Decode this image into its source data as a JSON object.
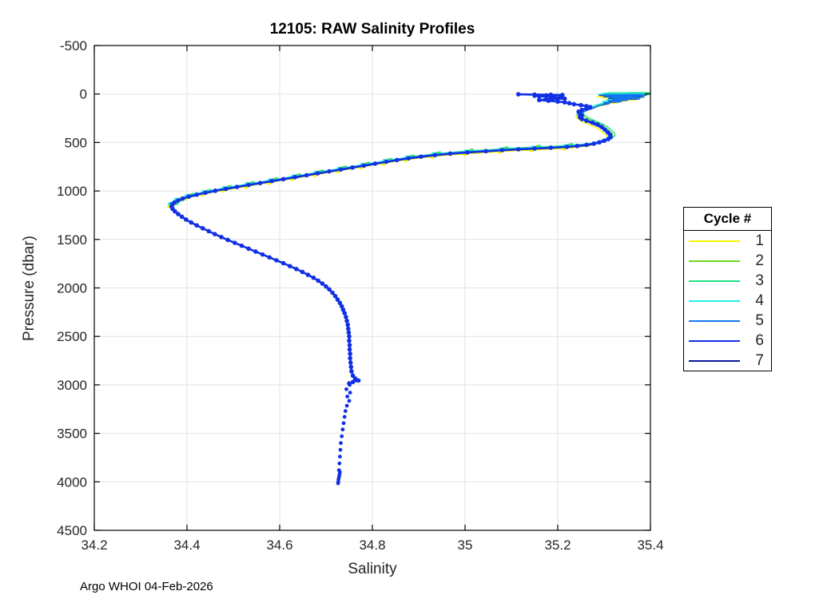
{
  "chart_data": {
    "type": "line",
    "title": "12105: RAW Salinity Profiles",
    "xlabel": "Salinity",
    "ylabel": "Pressure (dbar)",
    "footer": "Argo WHOI 04-Feb-2026",
    "xlim": [
      34.2,
      35.4
    ],
    "ylim": [
      -500,
      4500
    ],
    "y_axis_reversed": true,
    "grid": true,
    "grid_color": "#e2e2e2",
    "axis_color": "#000000",
    "tick_label_color": "#262626",
    "xticks": {
      "values": [
        34.2,
        34.4,
        34.6,
        34.8,
        35.0,
        35.2,
        35.4
      ],
      "labels": [
        "34.2",
        "34.4",
        "34.6",
        "34.8",
        "35",
        "35.2",
        "35.4"
      ]
    },
    "yticks": {
      "values": [
        -500,
        0,
        500,
        1000,
        1500,
        2000,
        2500,
        3000,
        3500,
        4000,
        4500
      ],
      "labels": [
        "-500",
        "0",
        "500",
        "1000",
        "1500",
        "2000",
        "2500",
        "3000",
        "3500",
        "4000",
        "4500"
      ]
    },
    "legend": {
      "title": "Cycle #",
      "position": "right-outside",
      "entries": [
        {
          "label": "1",
          "color": "#f7f500"
        },
        {
          "label": "2",
          "color": "#70d92b"
        },
        {
          "label": "3",
          "color": "#21e383"
        },
        {
          "label": "4",
          "color": "#1ff0ee"
        },
        {
          "label": "5",
          "color": "#1577f0"
        },
        {
          "label": "6",
          "color": "#1130e6"
        },
        {
          "label": "7",
          "color": "#0a17a0"
        }
      ]
    },
    "series": [
      {
        "label": "1",
        "color": "#f7f500",
        "style": "thin",
        "dx": -0.006,
        "dy": 16,
        "diag_markers": true
      },
      {
        "label": "2",
        "color": "#70d92b",
        "style": "thin",
        "dx": 0.005,
        "dy": -12,
        "diag_markers": true
      },
      {
        "label": "3",
        "color": "#21e383",
        "style": "thin",
        "dx": 0.01,
        "dy": -17,
        "diag_markers": true
      },
      {
        "label": "4",
        "color": "#1ff0ee",
        "style": "thin",
        "dx": -0.004,
        "dy": -7,
        "diag_markers": true
      },
      {
        "label": "5",
        "color": "#1577f0",
        "style": "thin",
        "dx": 0.002,
        "dy": 2,
        "diag_markers": false
      },
      {
        "label": "6",
        "color": "#1130e6",
        "style": "main",
        "dx": 0,
        "dy": 0,
        "diag_markers": false
      },
      {
        "label": "7",
        "color": "#0a17a0",
        "style": "thin",
        "dx": 0,
        "dy": 6,
        "diag_markers": false
      }
    ],
    "profiles_note": "points are [pressure_dbar, salinity]; cycle 6 is the dominant thick marker profile, cycles 1-5 and 7 are thin overlapping lines",
    "main_profile": [
      [
        3,
        35.115
      ],
      [
        6,
        35.15
      ],
      [
        8,
        35.185
      ],
      [
        10,
        35.21
      ],
      [
        14,
        35.175
      ],
      [
        18,
        35.15
      ],
      [
        24,
        35.16
      ],
      [
        30,
        35.185
      ],
      [
        38,
        35.205
      ],
      [
        48,
        35.215
      ],
      [
        55,
        35.175
      ],
      [
        62,
        35.16
      ],
      [
        70,
        35.18
      ],
      [
        78,
        35.2
      ],
      [
        86,
        35.215
      ],
      [
        95,
        35.225
      ],
      [
        105,
        35.235
      ],
      [
        115,
        35.25
      ],
      [
        125,
        35.262
      ],
      [
        135,
        35.27
      ],
      [
        148,
        35.262
      ],
      [
        165,
        35.252
      ],
      [
        182,
        35.245
      ],
      [
        200,
        35.248
      ],
      [
        220,
        35.252
      ],
      [
        240,
        35.248
      ],
      [
        258,
        35.252
      ],
      [
        275,
        35.262
      ],
      [
        295,
        35.275
      ],
      [
        315,
        35.286
      ],
      [
        340,
        35.295
      ],
      [
        368,
        35.302
      ],
      [
        395,
        35.308
      ],
      [
        420,
        35.313
      ],
      [
        445,
        35.314
      ],
      [
        465,
        35.309
      ],
      [
        482,
        35.3
      ],
      [
        498,
        35.29
      ],
      [
        512,
        35.278
      ],
      [
        525,
        35.262
      ],
      [
        536,
        35.242
      ],
      [
        545,
        35.22
      ],
      [
        554,
        35.185
      ],
      [
        562,
        35.15
      ],
      [
        570,
        35.115
      ],
      [
        579,
        35.08
      ],
      [
        590,
        35.045
      ],
      [
        602,
        35.005
      ],
      [
        615,
        34.968
      ],
      [
        630,
        34.935
      ],
      [
        646,
        34.905
      ],
      [
        663,
        34.878
      ],
      [
        681,
        34.853
      ],
      [
        699,
        34.83
      ],
      [
        718,
        34.806
      ],
      [
        738,
        34.782
      ],
      [
        758,
        34.757
      ],
      [
        778,
        34.732
      ],
      [
        798,
        34.707
      ],
      [
        818,
        34.682
      ],
      [
        838,
        34.658
      ],
      [
        858,
        34.633
      ],
      [
        878,
        34.608
      ],
      [
        898,
        34.583
      ],
      [
        918,
        34.558
      ],
      [
        938,
        34.533
      ],
      [
        958,
        34.508
      ],
      [
        978,
        34.484
      ],
      [
        998,
        34.461
      ],
      [
        1018,
        34.44
      ],
      [
        1038,
        34.421
      ],
      [
        1058,
        34.404
      ],
      [
        1078,
        34.391
      ],
      [
        1098,
        34.381
      ],
      [
        1118,
        34.373
      ],
      [
        1140,
        34.368
      ],
      [
        1162,
        34.367
      ],
      [
        1185,
        34.369
      ],
      [
        1210,
        34.374
      ],
      [
        1238,
        34.381
      ],
      [
        1266,
        34.389
      ],
      [
        1295,
        34.398
      ],
      [
        1325,
        34.409
      ],
      [
        1355,
        34.421
      ],
      [
        1385,
        34.434
      ],
      [
        1415,
        34.447
      ],
      [
        1445,
        34.46
      ],
      [
        1475,
        34.474
      ],
      [
        1505,
        34.488
      ],
      [
        1535,
        34.503
      ],
      [
        1565,
        34.518
      ],
      [
        1595,
        34.533
      ],
      [
        1625,
        34.548
      ],
      [
        1655,
        34.563
      ],
      [
        1685,
        34.578
      ],
      [
        1715,
        34.593
      ],
      [
        1745,
        34.608
      ],
      [
        1775,
        34.622
      ],
      [
        1805,
        34.636
      ],
      [
        1835,
        34.649
      ],
      [
        1865,
        34.661
      ],
      [
        1895,
        34.673
      ],
      [
        1925,
        34.683
      ],
      [
        1955,
        34.692
      ],
      [
        1985,
        34.7
      ],
      [
        2015,
        34.707
      ],
      [
        2050,
        34.714
      ],
      [
        2085,
        34.72
      ],
      [
        2120,
        34.725
      ],
      [
        2155,
        34.73
      ],
      [
        2190,
        34.734
      ],
      [
        2225,
        34.737
      ],
      [
        2260,
        34.74
      ],
      [
        2300,
        34.743
      ],
      [
        2340,
        34.745
      ],
      [
        2380,
        34.747
      ],
      [
        2420,
        34.748
      ],
      [
        2460,
        34.749
      ],
      [
        2500,
        34.75
      ],
      [
        2545,
        34.75
      ],
      [
        2590,
        34.751
      ],
      [
        2635,
        34.751
      ],
      [
        2680,
        34.752
      ],
      [
        2725,
        34.752
      ],
      [
        2770,
        34.753
      ],
      [
        2815,
        34.754
      ],
      [
        2860,
        34.755
      ],
      [
        2905,
        34.758
      ],
      [
        2935,
        34.763
      ],
      [
        2955,
        34.77
      ],
      [
        2970,
        34.758
      ],
      [
        2985,
        34.75
      ]
    ],
    "surface_thin_profile": [
      [
        2,
        35.34
      ],
      [
        3,
        35.39
      ],
      [
        5,
        35.3
      ],
      [
        7,
        35.37
      ],
      [
        9,
        35.29
      ],
      [
        12,
        35.38
      ],
      [
        15,
        35.3
      ],
      [
        18,
        35.36
      ],
      [
        22,
        35.3
      ],
      [
        26,
        35.385
      ],
      [
        30,
        35.315
      ],
      [
        35,
        35.37
      ],
      [
        40,
        35.31
      ],
      [
        46,
        35.375
      ],
      [
        52,
        35.32
      ],
      [
        58,
        35.35
      ],
      [
        66,
        35.31
      ],
      [
        75,
        35.335
      ],
      [
        85,
        35.3
      ],
      [
        95,
        35.31
      ],
      [
        108,
        35.295
      ],
      [
        122,
        35.285
      ],
      [
        138,
        35.278
      ],
      [
        155,
        35.268
      ],
      [
        172,
        35.258
      ],
      [
        190,
        35.25
      ],
      [
        212,
        35.245
      ],
      [
        235,
        35.248
      ],
      [
        258,
        35.255
      ],
      [
        282,
        35.265
      ],
      [
        306,
        35.277
      ],
      [
        332,
        35.289
      ],
      [
        360,
        35.298
      ],
      [
        390,
        35.306
      ],
      [
        418,
        35.312
      ],
      [
        445,
        35.314
      ],
      [
        468,
        35.308
      ],
      [
        488,
        35.297
      ],
      [
        505,
        35.285
      ],
      [
        520,
        35.27
      ],
      [
        533,
        35.25
      ],
      [
        543,
        35.225
      ]
    ],
    "deep_dots": [
      [
        3000,
        34.751
      ],
      [
        3045,
        34.744
      ],
      [
        3080,
        34.752
      ],
      [
        3120,
        34.746
      ],
      [
        3165,
        34.75
      ],
      [
        3215,
        34.745
      ],
      [
        3270,
        34.742
      ],
      [
        3330,
        34.74
      ],
      [
        3395,
        34.738
      ],
      [
        3460,
        34.736
      ],
      [
        3530,
        34.734
      ],
      [
        3600,
        34.732
      ],
      [
        3670,
        34.731
      ],
      [
        3740,
        34.73
      ],
      [
        3810,
        34.729
      ],
      [
        3880,
        34.728
      ],
      [
        3900,
        34.73
      ],
      [
        3925,
        34.729
      ],
      [
        3950,
        34.728
      ],
      [
        3975,
        34.727
      ],
      [
        4000,
        34.7265
      ],
      [
        4015,
        34.726
      ]
    ]
  }
}
